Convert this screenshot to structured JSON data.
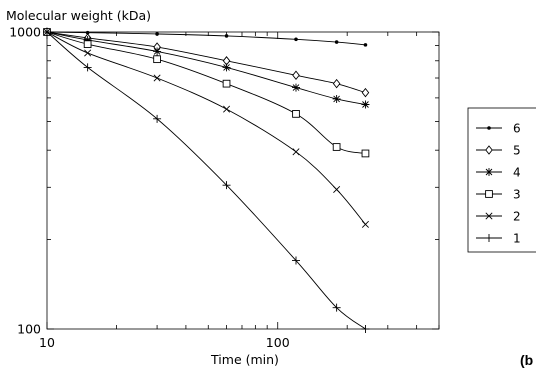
{
  "chart_data": {
    "type": "line",
    "ylabel": "Molecular weight (kDa)",
    "xlabel": "Time (min)",
    "x_scale": "log",
    "y_scale": "log",
    "xlim": [
      10,
      500
    ],
    "ylim": [
      100,
      1000
    ],
    "x_ticks": [
      {
        "value": 10,
        "label": "10"
      },
      {
        "value": 100,
        "label": "100"
      }
    ],
    "y_ticks": [
      {
        "value": 100,
        "label": "100"
      },
      {
        "value": 1000,
        "label": "1000"
      }
    ],
    "grid": false,
    "legend_position": "right",
    "series": [
      {
        "name": "6",
        "marker": "dot",
        "x": [
          10,
          15,
          30,
          60,
          120,
          180,
          240
        ],
        "y": [
          1000,
          995,
          985,
          970,
          945,
          925,
          905
        ]
      },
      {
        "name": "5",
        "marker": "diamond",
        "x": [
          10,
          15,
          30,
          60,
          120,
          180,
          240
        ],
        "y": [
          1000,
          955,
          890,
          800,
          715,
          670,
          625
        ]
      },
      {
        "name": "4",
        "marker": "asterisk",
        "x": [
          10,
          15,
          30,
          60,
          120,
          180,
          240
        ],
        "y": [
          1000,
          940,
          860,
          760,
          650,
          595,
          570
        ]
      },
      {
        "name": "3",
        "marker": "square",
        "x": [
          10,
          15,
          30,
          60,
          120,
          180,
          240
        ],
        "y": [
          1000,
          910,
          810,
          670,
          530,
          410,
          390
        ]
      },
      {
        "name": "2",
        "marker": "cross",
        "x": [
          10,
          15,
          30,
          60,
          120,
          180,
          240
        ],
        "y": [
          1000,
          850,
          700,
          550,
          395,
          295,
          225
        ]
      },
      {
        "name": "1",
        "marker": "plus",
        "x": [
          10,
          15,
          30,
          60,
          120,
          180,
          240
        ],
        "y": [
          1000,
          760,
          510,
          305,
          170,
          118,
          100
        ]
      }
    ]
  },
  "panel_label": "(b"
}
